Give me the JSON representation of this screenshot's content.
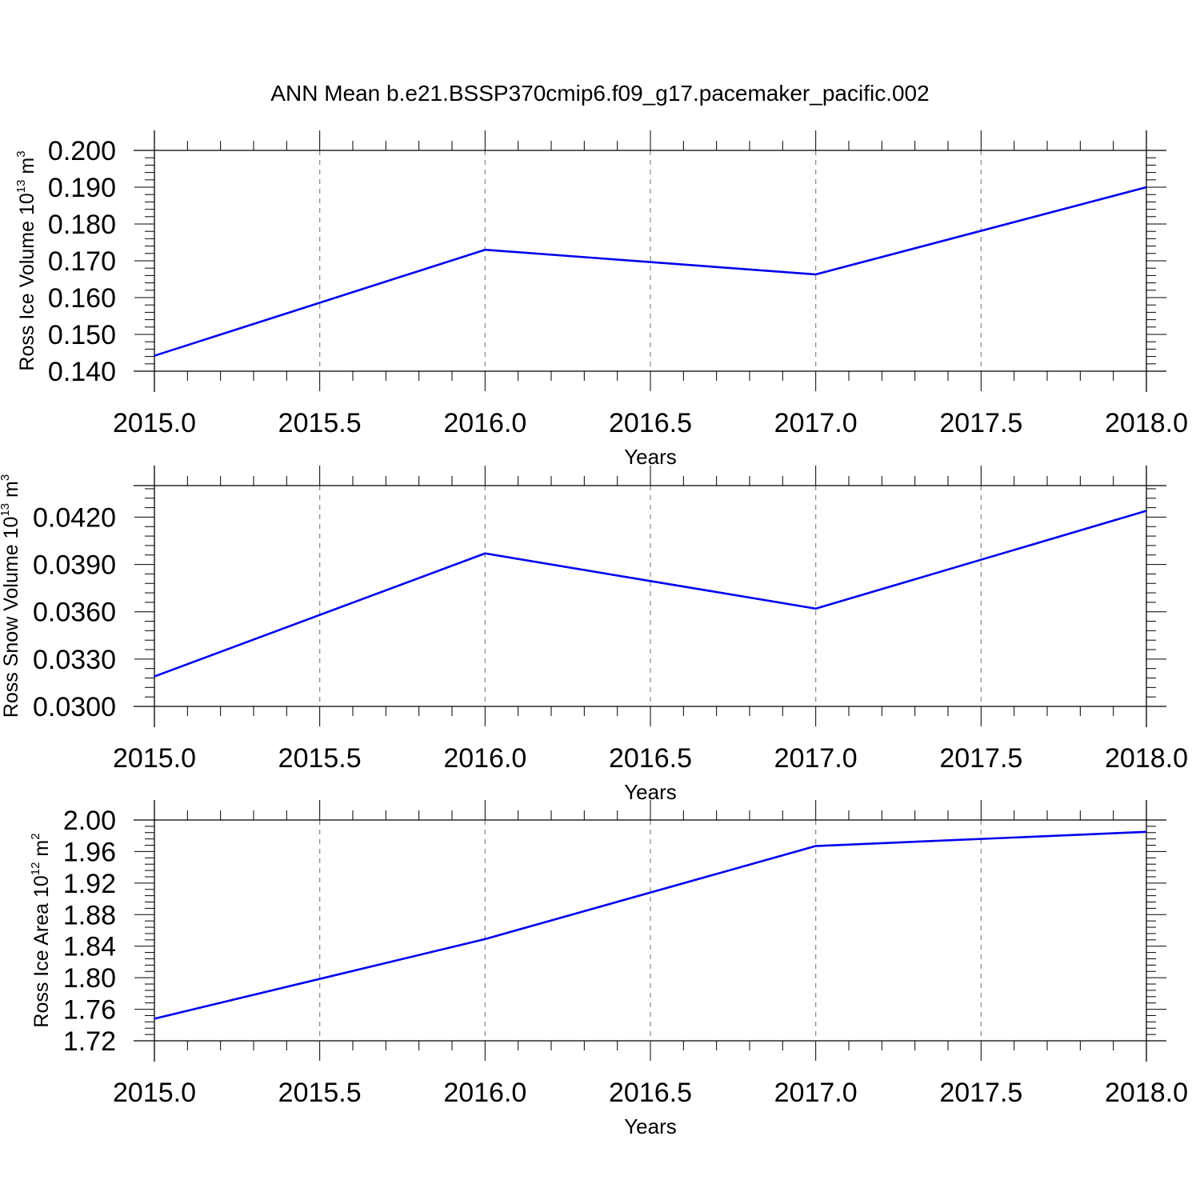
{
  "title": "ANN Mean b.e21.BSSP370cmip6.f09_g17.pacemaker_pacific.002",
  "chart_data": [
    {
      "type": "line",
      "xlabel": "Years",
      "ylabel": {
        "text": "Ross Ice Volume 10",
        "exp": "13",
        "unit": "m",
        "unit_exp": "3"
      },
      "xlim": [
        2015.0,
        2018.0
      ],
      "ylim": [
        0.14,
        0.2
      ],
      "xticks": [
        "2015.0",
        "2015.5",
        "2016.0",
        "2016.5",
        "2017.0",
        "2017.5",
        "2018.0"
      ],
      "yticks": [
        "0.140",
        "0.150",
        "0.160",
        "0.170",
        "0.180",
        "0.190",
        "0.200"
      ],
      "grid": "vertical dashed",
      "series": [
        {
          "color": "#0000ee",
          "x": [
            2015,
            2016,
            2017,
            2018
          ],
          "values": [
            0.1442,
            0.173,
            0.1663,
            0.19
          ]
        }
      ]
    },
    {
      "type": "line",
      "xlabel": "Years",
      "ylabel": {
        "text": "Ross Snow Volume 10",
        "exp": "13",
        "unit": "m",
        "unit_exp": "3"
      },
      "xlim": [
        2015.0,
        2018.0
      ],
      "ylim": [
        0.03,
        0.044
      ],
      "xticks": [
        "2015.0",
        "2015.5",
        "2016.0",
        "2016.5",
        "2017.0",
        "2017.5",
        "2018.0"
      ],
      "yticks": [
        "0.0300",
        "0.0330",
        "0.0360",
        "0.0390",
        "0.0420"
      ],
      "grid": "vertical dashed",
      "series": [
        {
          "color": "#0000ee",
          "x": [
            2015,
            2016,
            2017,
            2018
          ],
          "values": [
            0.0319,
            0.0397,
            0.0362,
            0.0424
          ]
        }
      ]
    },
    {
      "type": "line",
      "xlabel": "Years",
      "ylabel": {
        "text": "Ross Ice Area 10",
        "exp": "12",
        "unit": "m",
        "unit_exp": "2"
      },
      "xlim": [
        2015.0,
        2018.0
      ],
      "ylim": [
        1.72,
        2.0
      ],
      "xticks": [
        "2015.0",
        "2015.5",
        "2016.0",
        "2016.5",
        "2017.0",
        "2017.5",
        "2018.0"
      ],
      "yticks": [
        "1.72",
        "1.76",
        "1.80",
        "1.84",
        "1.88",
        "1.92",
        "1.96",
        "2.00"
      ],
      "grid": "vertical dashed",
      "series": [
        {
          "color": "#0000ee",
          "x": [
            2015,
            2016,
            2017,
            2018
          ],
          "values": [
            1.748,
            1.849,
            1.967,
            1.985
          ]
        }
      ]
    }
  ]
}
